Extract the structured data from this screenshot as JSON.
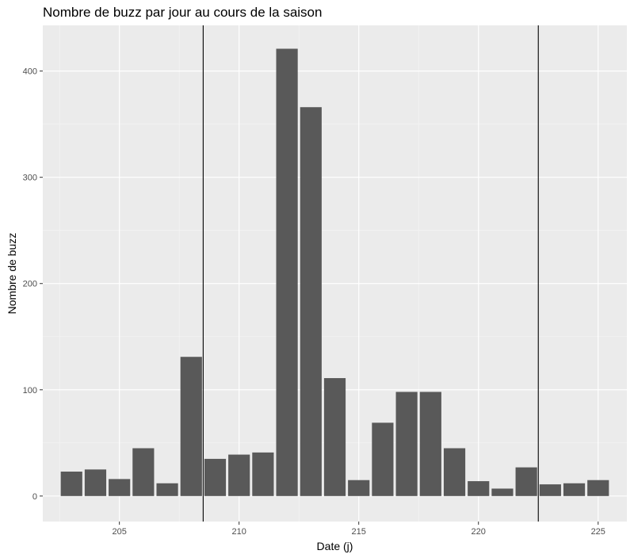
{
  "chart_data": {
    "type": "bar",
    "title": "Nombre de buzz par jour au cours de la saison",
    "xlabel": "Date (j)",
    "ylabel": "Nombre de buzz",
    "x": [
      203,
      204,
      205,
      206,
      207,
      208,
      209,
      210,
      211,
      212,
      213,
      214,
      215,
      216,
      217,
      218,
      219,
      220,
      221,
      222,
      223,
      224,
      225
    ],
    "values": [
      23,
      25,
      16,
      45,
      12,
      131,
      35,
      39,
      41,
      421,
      366,
      111,
      15,
      69,
      98,
      98,
      45,
      14,
      7,
      27,
      11,
      12,
      15
    ],
    "xlim": [
      201.8,
      226.2
    ],
    "ylim": [
      -24,
      443
    ],
    "x_ticks": [
      205,
      210,
      215,
      220,
      225
    ],
    "y_ticks": [
      0,
      100,
      200,
      300,
      400
    ],
    "vlines": [
      208.5,
      222.5
    ],
    "grid": true,
    "legend": "none",
    "colors": {
      "bar": "#595959",
      "panel": "#ebebeb",
      "grid_major": "#ffffff",
      "grid_minor": "#f5f5f5",
      "vline": "#000000",
      "tick_label": "#4d4d4d"
    }
  }
}
